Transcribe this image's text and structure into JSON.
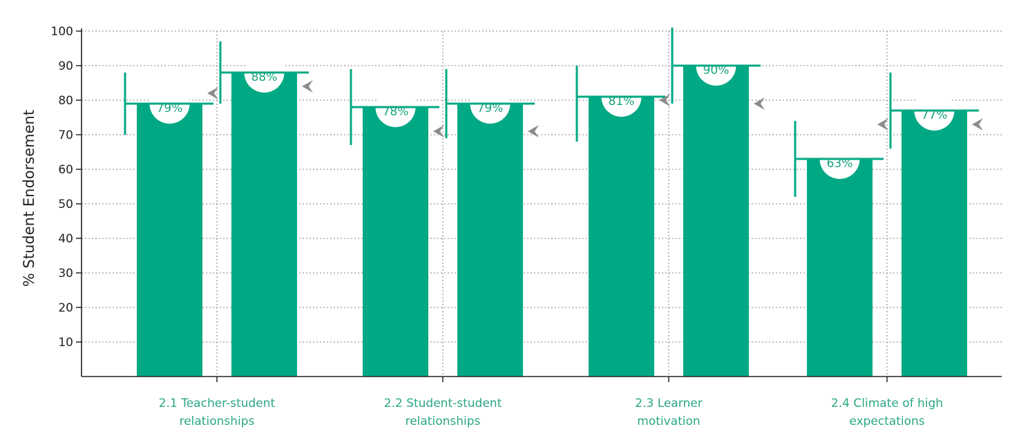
{
  "chart_data": {
    "type": "bar",
    "ylabel": "% Student Endorsement",
    "xlabel": "",
    "ylim": [
      0,
      100
    ],
    "yticks": [
      10,
      20,
      30,
      40,
      50,
      60,
      70,
      80,
      90,
      100
    ],
    "grid": true,
    "categories": [
      [
        "2.1 Teacher-student",
        "relationships"
      ],
      [
        "2.2 Student-student",
        "relationships"
      ],
      [
        "2.3 Learner",
        "motivation"
      ],
      [
        "2.4 Climate of high",
        "expectations"
      ]
    ],
    "bars": [
      {
        "value": 79,
        "label": "79%",
        "range": [
          70,
          88
        ],
        "marker": 82
      },
      {
        "value": 88,
        "label": "88%",
        "range": [
          79,
          97
        ],
        "marker": 84
      },
      {
        "value": 78,
        "label": "78%",
        "range": [
          67,
          89
        ],
        "marker": 71
      },
      {
        "value": 79,
        "label": "79%",
        "range": [
          69,
          89
        ],
        "marker": 71
      },
      {
        "value": 81,
        "label": "81%",
        "range": [
          68,
          90
        ],
        "marker": 80
      },
      {
        "value": 90,
        "label": "90%",
        "range": [
          79,
          101
        ],
        "marker": 79
      },
      {
        "value": 63,
        "label": "63%",
        "range": [
          52,
          74
        ],
        "marker": 73
      },
      {
        "value": 77,
        "label": "77%",
        "range": [
          66,
          88
        ],
        "marker": 73
      }
    ],
    "colors": {
      "bar": "#00a984",
      "label_text": "#17a37e",
      "category_text": "#2aa784",
      "marker": "#8c8c8c",
      "grid": "#9a9a9a",
      "axis": "#222222"
    }
  }
}
